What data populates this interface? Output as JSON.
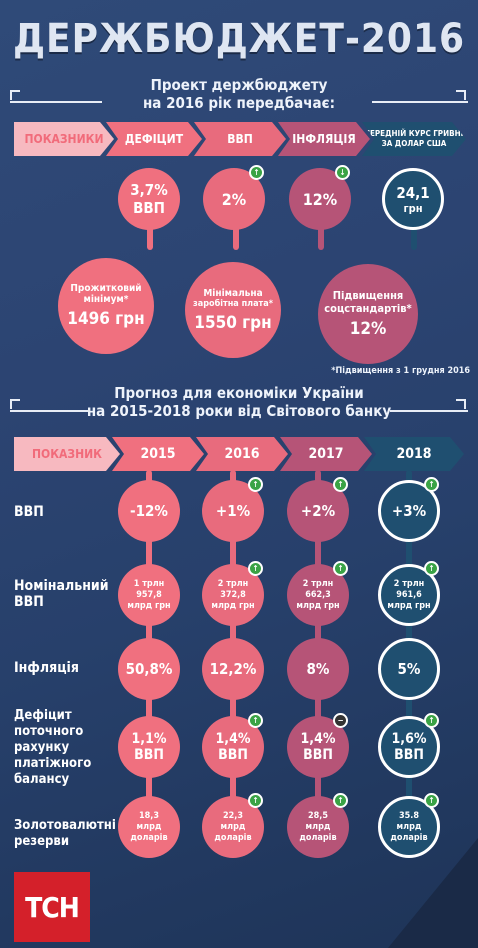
{
  "title": "ДЕРЖБЮДЖЕТ-2016",
  "section1": {
    "heading_line1": "Проект держбюджету",
    "heading_line2": "на 2016 рік передбачає:",
    "headers": [
      "ПОКАЗНИКИ",
      "ДЕФІЦИТ",
      "ВВП",
      "ІНФЛЯЦІЯ",
      "СЕРЕДНІЙ КУРС ГРИВНІ ЗА ДОЛАР США"
    ],
    "values": {
      "deficit_line1": "3,7%",
      "deficit_line2": "ВВП",
      "gdp": "2%",
      "inflation": "12%",
      "rate_line1": "24,1",
      "rate_line2": "грн"
    },
    "big": {
      "living_line1": "Прожитковий",
      "living_line2": "мінімум*",
      "living_value": "1496 грн",
      "wage_line1": "Мінімальна",
      "wage_line2": "заробітна плата*",
      "wage_value": "1550 грн",
      "social_line1": "Підвищення",
      "social_line2": "соцстандартів*",
      "social_value": "12%"
    },
    "footnote": "*Підвищення з 1 грудня 2016"
  },
  "section2": {
    "heading_line1": "Прогноз для економіки України",
    "heading_line2": "на 2015-2018 роки від Світового банку",
    "headers": [
      "ПОКАЗНИК",
      "2015",
      "2016",
      "2017",
      "2018"
    ],
    "rows": [
      {
        "label": "ВВП",
        "values": [
          "-12%",
          "+1%",
          "+2%",
          "+3%"
        ]
      },
      {
        "label": "Номінальний ВВП",
        "values": [
          "1 трлн 957,8 млрд грн",
          "2 трлн 372,8 млрд грн",
          "2 трлн 662,3 млрд грн",
          "2 трлн 961,6 млрд грн"
        ]
      },
      {
        "label": "Інфляція",
        "values": [
          "50,8%",
          "12,2%",
          "8%",
          "5%"
        ]
      },
      {
        "label": "Дефіцит поточного рахунку платіжного балансу",
        "values": [
          "1,1% ВВП",
          "1,4% ВВП",
          "1,4% ВВП",
          "1,6% ВВП"
        ]
      },
      {
        "label": "Золотовалютні резерви",
        "values": [
          "18,3 млрд доларів",
          "22,3 млрд доларів",
          "28,5 млрд доларів",
          "35.8 млрд доларів"
        ]
      }
    ]
  },
  "logo": "ТСН",
  "colors": {
    "pink": "#f0707f",
    "plum": "#b65477",
    "navy": "#1f4f70",
    "green": "#3aa345",
    "red": "#d4202a"
  },
  "icons": {
    "up": "arrow-up-icon",
    "down": "arrow-down-icon",
    "minus": "minus-icon"
  }
}
